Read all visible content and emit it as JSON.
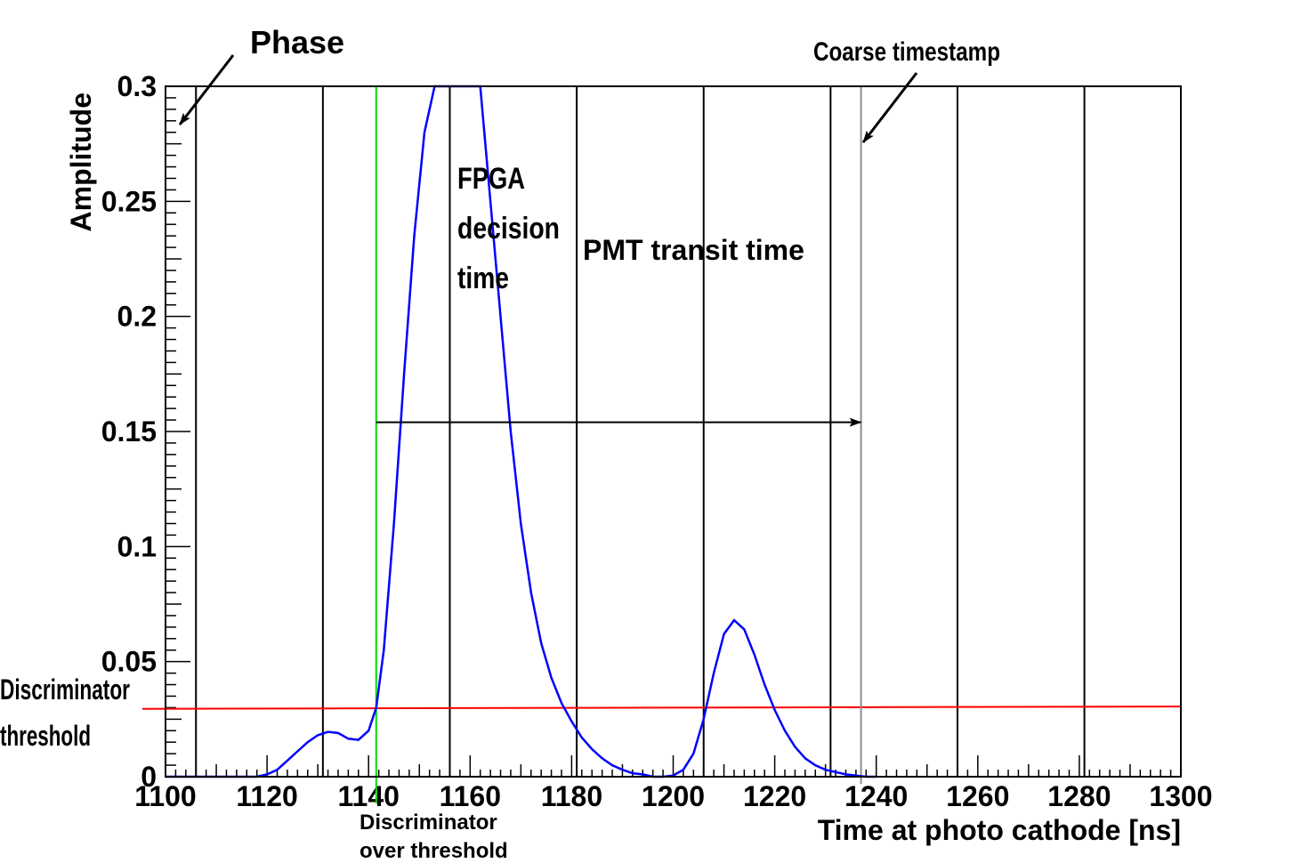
{
  "chart_data": {
    "type": "line",
    "xlabel": "Time at photo cathode [ns]",
    "ylabel": "Amplitude",
    "xlim": [
      1100,
      1300
    ],
    "ylim": [
      0,
      0.3
    ],
    "x_ticks": [
      1100,
      1120,
      1140,
      1160,
      1180,
      1200,
      1220,
      1240,
      1260,
      1280,
      1300
    ],
    "x_tick_labels": [
      "1100",
      "1120",
      "1140",
      "1160",
      "1180",
      "1200",
      "1220",
      "1240",
      "1260",
      "1280",
      "1300"
    ],
    "y_ticks": [
      0,
      0.05,
      0.1,
      0.15,
      0.2,
      0.25,
      0.3
    ],
    "y_tick_labels": [
      "0",
      "0.05",
      "0.1",
      "0.15",
      "0.2",
      "0.25",
      "0.3"
    ],
    "clock_lines_x": [
      1106,
      1131,
      1156,
      1181,
      1206,
      1231,
      1256,
      1281
    ],
    "discriminator_threshold": {
      "y_start": 0.0295,
      "y_end": 0.0305,
      "color": "#ff0000"
    },
    "discriminator_crossing_x": 1141.5,
    "coarse_timestamp_x": 1237,
    "pulse_series": {
      "color": "#0000ff",
      "x": [
        1100,
        1110,
        1118,
        1120,
        1122,
        1124,
        1126,
        1128,
        1130,
        1132,
        1134,
        1136,
        1138,
        1140,
        1141.5,
        1143,
        1145,
        1147,
        1149,
        1151,
        1153,
        1154,
        1158,
        1161,
        1162,
        1164,
        1166,
        1168,
        1170,
        1172,
        1174,
        1176,
        1178,
        1180,
        1182,
        1184,
        1186,
        1188,
        1190,
        1192,
        1194,
        1196,
        1198,
        1200,
        1202,
        1204,
        1206,
        1208,
        1210,
        1212,
        1214,
        1216,
        1218,
        1220,
        1222,
        1224,
        1226,
        1228,
        1230,
        1232,
        1234,
        1236,
        1238,
        1240
      ],
      "y": [
        0,
        0,
        0,
        0.001,
        0.003,
        0.007,
        0.011,
        0.015,
        0.018,
        0.0195,
        0.019,
        0.0165,
        0.016,
        0.02,
        0.03,
        0.055,
        0.11,
        0.175,
        0.235,
        0.28,
        0.3,
        0.31,
        0.34,
        0.315,
        0.3,
        0.25,
        0.2,
        0.15,
        0.11,
        0.08,
        0.058,
        0.043,
        0.032,
        0.024,
        0.017,
        0.012,
        0.008,
        0.005,
        0.003,
        0.0015,
        0.001,
        0,
        0,
        0.0005,
        0.003,
        0.01,
        0.025,
        0.045,
        0.062,
        0.068,
        0.064,
        0.053,
        0.04,
        0.029,
        0.02,
        0.013,
        0.008,
        0.005,
        0.003,
        0.002,
        0.001,
        0.0005,
        0,
        0
      ]
    },
    "annotations": {
      "phase": "Phase",
      "coarse_timestamp": "Coarse timestamp",
      "fpga_line1": "FPGA",
      "fpga_line2": "decision",
      "fpga_line3": "time",
      "pmt_transit": "PMT transit time",
      "disc_threshold_line1": "Discriminator",
      "disc_threshold_line2": "threshold",
      "disc_over_line1": "Discriminator",
      "disc_over_line2": "over threshold"
    },
    "transit_arrow": {
      "y": 0.154,
      "x_start": 1141.5,
      "x_end": 1237
    }
  }
}
